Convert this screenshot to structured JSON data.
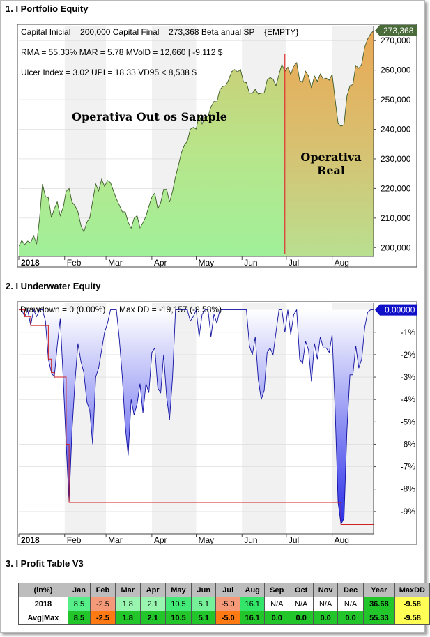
{
  "titles": {
    "equity": "1. I Portfolio Equity",
    "underwater": "2. I Underwater Equity",
    "profit": "3. I Profit Table V3"
  },
  "equity": {
    "info_line1": "Capital Inicial = 200,000  Capital Final = 273,368  Beta anual SP = {EMPTY}",
    "info_line2": "RMA = 55.33%   MAR = 5.78   MVolD = 12,660 | -9,112 $",
    "info_line3": "Ulcer Index = 3.02   UPI = 18.33   VD95 < 8,538 $",
    "annotation_oos": "Operativa Out os Sample",
    "annotation_real_1": "Operativa",
    "annotation_real_2": "Real",
    "last_value_label": "273,368",
    "colors": {
      "oos_fill": "#a6ee9a",
      "real_fill": "#e8b060",
      "line": "#3c5a28",
      "divider": "#e03030",
      "badge": "#4a6b3a"
    }
  },
  "underwater": {
    "info_line1": "Drawdown = 0 (0.00%)",
    "info_line2": "Max DD = -19,157 (-9.58%)",
    "last_value_label": "0.00000",
    "colors": {
      "line": "#1010a0",
      "maxdd": "#d02020",
      "badge": "#1010c8"
    }
  },
  "chart_data": [
    {
      "type": "area",
      "title": "1. I Portfolio Equity",
      "x_tick_labels": [
        "2018",
        "Feb",
        "Mar",
        "Apr",
        "May",
        "Jun",
        "Jul",
        "Aug"
      ],
      "x_tick_days": [
        0,
        31,
        59,
        90,
        120,
        151,
        181,
        212
      ],
      "y_tick_labels": [
        "200,000",
        "210,000",
        "220,000",
        "230,000",
        "240,000",
        "250,000",
        "260,000",
        "270,000"
      ],
      "ylim": [
        197000,
        275000
      ],
      "xlim": [
        0,
        240
      ],
      "real_start_day": 180,
      "series": [
        {
          "x": [
            0,
            2,
            4,
            6,
            8,
            10,
            12,
            14,
            16,
            18,
            20,
            22,
            24,
            26,
            28,
            30,
            32,
            34,
            36,
            38,
            40,
            42,
            44,
            46,
            48,
            50,
            52,
            54,
            56,
            58,
            60,
            62,
            64,
            66,
            68,
            70,
            72,
            74,
            76,
            78,
            80,
            82,
            84,
            86,
            88,
            90,
            92,
            94,
            96,
            98,
            100,
            102,
            104,
            106,
            108,
            110,
            112,
            114,
            116,
            118,
            120,
            122,
            124,
            126,
            128,
            130,
            132,
            134,
            136,
            138,
            140,
            142,
            144,
            146,
            148,
            150,
            152,
            154,
            156,
            158,
            160,
            162,
            164,
            166,
            168,
            170,
            172,
            174,
            176,
            178,
            180,
            182,
            184,
            186,
            188,
            190,
            192,
            194,
            196,
            198,
            200,
            202,
            204,
            206,
            208,
            210,
            212,
            214,
            216,
            218,
            220,
            222,
            224,
            226,
            228,
            230,
            232,
            234,
            236,
            238,
            240
          ],
          "y": [
            200500,
            202400,
            201000,
            202200,
            201600,
            204100,
            201200,
            209700,
            221500,
            217300,
            216900,
            210200,
            213100,
            215500,
            210800,
            213500,
            219000,
            220000,
            215400,
            214200,
            212100,
            207500,
            205300,
            208600,
            210100,
            215700,
            221500,
            219200,
            223100,
            220700,
            222700,
            222000,
            219200,
            216500,
            214400,
            212100,
            212100,
            208600,
            206600,
            209900,
            210800,
            206700,
            208400,
            210600,
            214000,
            217100,
            218400,
            213100,
            215200,
            219700,
            219700,
            215400,
            219000,
            223900,
            227900,
            232100,
            234600,
            236000,
            240000,
            240700,
            240100,
            244800,
            241800,
            244200,
            244400,
            247600,
            249400,
            249300,
            253400,
            254500,
            254700,
            256800,
            259500,
            260200,
            259400,
            260200,
            256000,
            255800,
            252200,
            252200,
            253500,
            251900,
            252200,
            252300,
            256600,
            257500,
            257000,
            254700,
            258500,
            262000,
            259500,
            261000,
            258500,
            261400,
            262500,
            256500,
            255900,
            259600,
            258000,
            254000,
            258000,
            256200,
            258700,
            257000,
            257300,
            256600,
            258600,
            250000,
            242000,
            241000,
            241600,
            251200,
            254700,
            255100,
            261600,
            260600,
            262000,
            267800,
            270500,
            272200,
            273368
          ]
        }
      ]
    },
    {
      "type": "area",
      "title": "2. I Underwater Equity",
      "x_tick_labels": [
        "2018",
        "Feb",
        "Mar",
        "Apr",
        "May",
        "Jun",
        "Jul",
        "Aug"
      ],
      "x_tick_days": [
        0,
        31,
        59,
        90,
        120,
        151,
        181,
        212
      ],
      "y_tick_labels": [
        "-1%",
        "-2%",
        "-3%",
        "-4%",
        "-5%",
        "-6%",
        "-7%",
        "-8%",
        "-9%"
      ],
      "ylim": [
        -10.0,
        0.3
      ],
      "xlim": [
        0,
        240
      ],
      "series": [
        {
          "name": "Drawdown",
          "x": [
            0,
            2,
            4,
            6,
            8,
            10,
            12,
            14,
            16,
            18,
            20,
            22,
            24,
            26,
            28,
            30,
            32,
            34,
            36,
            38,
            40,
            42,
            44,
            46,
            48,
            50,
            52,
            54,
            56,
            58,
            60,
            62,
            64,
            66,
            68,
            70,
            72,
            74,
            76,
            78,
            80,
            82,
            84,
            86,
            88,
            90,
            92,
            94,
            96,
            98,
            100,
            102,
            104,
            106,
            108,
            110,
            112,
            114,
            116,
            118,
            120,
            122,
            124,
            126,
            128,
            130,
            132,
            134,
            136,
            138,
            140,
            142,
            144,
            146,
            148,
            150,
            152,
            154,
            156,
            158,
            160,
            162,
            164,
            166,
            168,
            170,
            172,
            174,
            176,
            178,
            180,
            182,
            184,
            186,
            188,
            190,
            192,
            194,
            196,
            198,
            200,
            202,
            204,
            206,
            208,
            210,
            212,
            214,
            216,
            218,
            220,
            222,
            224,
            226,
            228,
            230,
            232,
            234,
            236,
            238,
            240
          ],
          "y": [
            0,
            0,
            -0.3,
            0,
            -0.7,
            0,
            -0.3,
            0,
            0,
            -0.5,
            -2.2,
            -2.8,
            -3.0,
            -1.6,
            -0.4,
            -3.0,
            -6.0,
            -8.6,
            -5.4,
            -3.2,
            -1.5,
            -2.3,
            -2.8,
            -4.1,
            -4.5,
            -6.0,
            -3.0,
            -2.6,
            -1.8,
            -1.0,
            -0.6,
            0,
            0,
            0,
            -1.3,
            -3.0,
            -5.2,
            -6.5,
            -4.0,
            -4.7,
            -4.2,
            -3.3,
            -4.6,
            -3.3,
            -3.7,
            -1.9,
            -1.7,
            -3.5,
            -3.7,
            -2.0,
            -3.9,
            -4.9,
            -3.0,
            0,
            0,
            0,
            0,
            0,
            -0.5,
            -0.3,
            0,
            -1.2,
            -0.2,
            0,
            0,
            -1.2,
            -0.2,
            -0.6,
            0,
            0,
            0,
            0,
            0,
            0,
            0,
            0,
            0,
            0,
            -1.6,
            -2.0,
            -1.2,
            -3.1,
            -4.0,
            -3.6,
            -1.9,
            -1.7,
            -2.0,
            -1.0,
            0,
            0,
            -1.0,
            0,
            -1.1,
            -0.2,
            0,
            -2.2,
            -2.4,
            -1.4,
            -1.8,
            -3.2,
            -1.5,
            -2.2,
            -1.2,
            -1.7,
            -1.7,
            -1.9,
            -1.1,
            -4.5,
            -8.6,
            -9.58,
            -9.3,
            -5.4,
            -2.9,
            -2.9,
            -1.6,
            -2.6,
            -2.2,
            -0.8,
            -0.1,
            0,
            0
          ]
        },
        {
          "name": "Max DD",
          "x": [
            0,
            2,
            4,
            6,
            8,
            10,
            12,
            14,
            16,
            18,
            20,
            22,
            24,
            26,
            28,
            30,
            32,
            34,
            36,
            38,
            40,
            42,
            44,
            46,
            48,
            50,
            52,
            54,
            56,
            58,
            60,
            62,
            64,
            66,
            68,
            70,
            72,
            74,
            76,
            78,
            80,
            82,
            84,
            86,
            88,
            90,
            92,
            94,
            96,
            98,
            100,
            102,
            104,
            106,
            108,
            110,
            112,
            114,
            116,
            118,
            120,
            122,
            124,
            126,
            128,
            130,
            132,
            134,
            136,
            138,
            140,
            142,
            144,
            146,
            148,
            150,
            152,
            154,
            156,
            158,
            160,
            162,
            164,
            166,
            168,
            170,
            172,
            174,
            176,
            178,
            180,
            182,
            184,
            186,
            188,
            190,
            192,
            194,
            196,
            198,
            200,
            202,
            204,
            206,
            208,
            210,
            212,
            214,
            216,
            218,
            220,
            222,
            224,
            226,
            228,
            230,
            232,
            234,
            236,
            238,
            240
          ],
          "y": [
            0,
            0,
            -0.3,
            -0.3,
            -0.7,
            -0.7,
            -0.7,
            -0.7,
            -0.7,
            -0.7,
            -2.2,
            -2.8,
            -3.0,
            -3.0,
            -3.0,
            -3.0,
            -6.0,
            -8.6,
            -8.6,
            -8.6,
            -8.6,
            -8.6,
            -8.6,
            -8.6,
            -8.6,
            -8.6,
            -8.6,
            -8.6,
            -8.6,
            -8.6,
            -8.6,
            -8.6,
            -8.6,
            -8.6,
            -8.6,
            -8.6,
            -8.6,
            -8.6,
            -8.6,
            -8.6,
            -8.6,
            -8.6,
            -8.6,
            -8.6,
            -8.6,
            -8.6,
            -8.6,
            -8.6,
            -8.6,
            -8.6,
            -8.6,
            -8.6,
            -8.6,
            -8.6,
            -8.6,
            -8.6,
            -8.6,
            -8.6,
            -8.6,
            -8.6,
            -8.6,
            -8.6,
            -8.6,
            -8.6,
            -8.6,
            -8.6,
            -8.6,
            -8.6,
            -8.6,
            -8.6,
            -8.6,
            -8.6,
            -8.6,
            -8.6,
            -8.6,
            -8.6,
            -8.6,
            -8.6,
            -8.6,
            -8.6,
            -8.6,
            -8.6,
            -8.6,
            -8.6,
            -8.6,
            -8.6,
            -8.6,
            -8.6,
            -8.6,
            -8.6,
            -8.6,
            -8.6,
            -8.6,
            -8.6,
            -8.6,
            -8.6,
            -8.6,
            -8.6,
            -8.6,
            -8.6,
            -8.6,
            -8.6,
            -8.6,
            -8.6,
            -8.6,
            -8.6,
            -8.6,
            -8.6,
            -8.6,
            -9.58,
            -9.58,
            -9.58,
            -9.58,
            -9.58,
            -9.58,
            -9.58,
            -9.58,
            -9.58,
            -9.58,
            -9.58,
            -9.58
          ]
        }
      ]
    },
    {
      "type": "table",
      "title": "3. I Profit Table V3",
      "columns": [
        "(in%)",
        "Jan",
        "Feb",
        "Mar",
        "Apr",
        "May",
        "Jun",
        "Jul",
        "Aug",
        "Sep",
        "Oct",
        "Nov",
        "Dec",
        "Year",
        "MaxDD"
      ],
      "rows": [
        {
          "label": "2018",
          "cells": [
            "8.5",
            "-2.5",
            "1.8",
            "2.1",
            "10.5",
            "5.1",
            "-5.0",
            "16.1",
            "N/A",
            "N/A",
            "N/A",
            "N/A",
            "36.68",
            "-9.58"
          ],
          "colors": [
            "#55ee88",
            "#f49a78",
            "#99f4b0",
            "#99f4b0",
            "#44ea77",
            "#77f09a",
            "#f49a78",
            "#33e66a",
            "#ffffff",
            "#ffffff",
            "#ffffff",
            "#ffffff",
            "#22c52a",
            "#ffff55"
          ]
        },
        {
          "label": "Avg|Max",
          "cells": [
            "8.5",
            "-2.5",
            "1.8",
            "2.1",
            "10.5",
            "5.1",
            "-5.0",
            "16.1",
            "0.0",
            "0.0",
            "0.0",
            "0.0",
            "55.33",
            "-9.58"
          ],
          "colors": [
            "#22c52a",
            "#ff7a12",
            "#22c52a",
            "#22c52a",
            "#22c52a",
            "#22c52a",
            "#ff7a12",
            "#22c52a",
            "#22c52a",
            "#22c52a",
            "#22c52a",
            "#22c52a",
            "#22c52a",
            "#ffff55"
          ]
        }
      ]
    }
  ]
}
